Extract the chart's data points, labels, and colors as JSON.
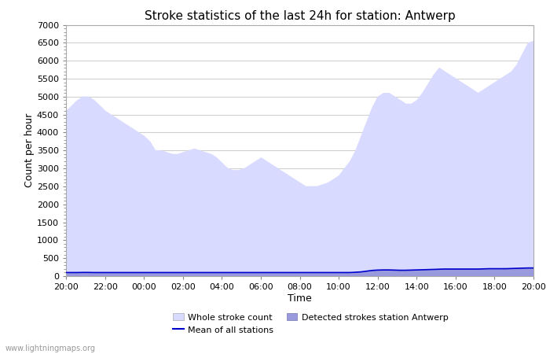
{
  "title": "Stroke statistics of the last 24h for station: Antwerp",
  "xlabel": "Time",
  "ylabel": "Count per hour",
  "ylim": [
    0,
    7000
  ],
  "yticks": [
    0,
    500,
    1000,
    1500,
    2000,
    2500,
    3000,
    3500,
    4000,
    4500,
    5000,
    5500,
    6000,
    6500,
    7000
  ],
  "xtick_labels": [
    "20:00",
    "22:00",
    "00:00",
    "02:00",
    "04:00",
    "06:00",
    "08:00",
    "10:00",
    "12:00",
    "14:00",
    "16:00",
    "18:00",
    "20:00"
  ],
  "background_color": "#ffffff",
  "plot_bg_color": "#ffffff",
  "grid_color": "#d0d0d0",
  "whole_stroke_color": "#d8daff",
  "detected_stroke_color": "#9999dd",
  "mean_line_color": "#0000cc",
  "watermark": "www.lightningmaps.org",
  "whole_stroke": [
    4600,
    4750,
    4900,
    5000,
    5000,
    4900,
    4750,
    4600,
    4500,
    4400,
    4300,
    4200,
    4100,
    4000,
    3900,
    3750,
    3500,
    3500,
    3450,
    3400,
    3400,
    3450,
    3500,
    3550,
    3500,
    3450,
    3400,
    3300,
    3150,
    3000,
    2950,
    2950,
    3000,
    3100,
    3200,
    3300,
    3200,
    3100,
    3000,
    2900,
    2800,
    2700,
    2600,
    2500,
    2500,
    2500,
    2550,
    2600,
    2700,
    2800,
    3000,
    3200,
    3500,
    3900,
    4300,
    4700,
    5000,
    5100,
    5100,
    5000,
    4900,
    4800,
    4800,
    4900,
    5100,
    5350,
    5600,
    5800,
    5700,
    5600,
    5500,
    5400,
    5300,
    5200,
    5100,
    5200,
    5300,
    5400,
    5500,
    5600,
    5700,
    5900,
    6200,
    6500,
    6550
  ],
  "detected_stroke": [
    100,
    100,
    100,
    105,
    105,
    100,
    100,
    100,
    100,
    100,
    100,
    100,
    100,
    100,
    100,
    100,
    100,
    100,
    100,
    100,
    100,
    100,
    100,
    100,
    100,
    100,
    100,
    100,
    100,
    100,
    100,
    100,
    100,
    100,
    100,
    100,
    100,
    100,
    100,
    100,
    100,
    100,
    100,
    100,
    100,
    100,
    100,
    100,
    100,
    100,
    100,
    100,
    110,
    120,
    140,
    160,
    170,
    175,
    175,
    170,
    165,
    165,
    170,
    175,
    180,
    185,
    190,
    195,
    200,
    200,
    200,
    200,
    200,
    200,
    200,
    205,
    210,
    210,
    210,
    210,
    215,
    220,
    225,
    230,
    230
  ],
  "mean_line": [
    100,
    100,
    100,
    103,
    103,
    100,
    100,
    100,
    100,
    100,
    100,
    100,
    100,
    100,
    100,
    100,
    100,
    100,
    100,
    100,
    100,
    100,
    100,
    100,
    100,
    100,
    100,
    100,
    100,
    100,
    100,
    100,
    100,
    100,
    100,
    100,
    100,
    100,
    100,
    100,
    100,
    100,
    100,
    100,
    100,
    100,
    100,
    100,
    100,
    100,
    100,
    100,
    108,
    118,
    138,
    158,
    168,
    172,
    172,
    168,
    163,
    163,
    168,
    172,
    177,
    182,
    187,
    192,
    197,
    197,
    197,
    197,
    197,
    197,
    197,
    202,
    207,
    207,
    207,
    207,
    212,
    217,
    222,
    227,
    227
  ]
}
